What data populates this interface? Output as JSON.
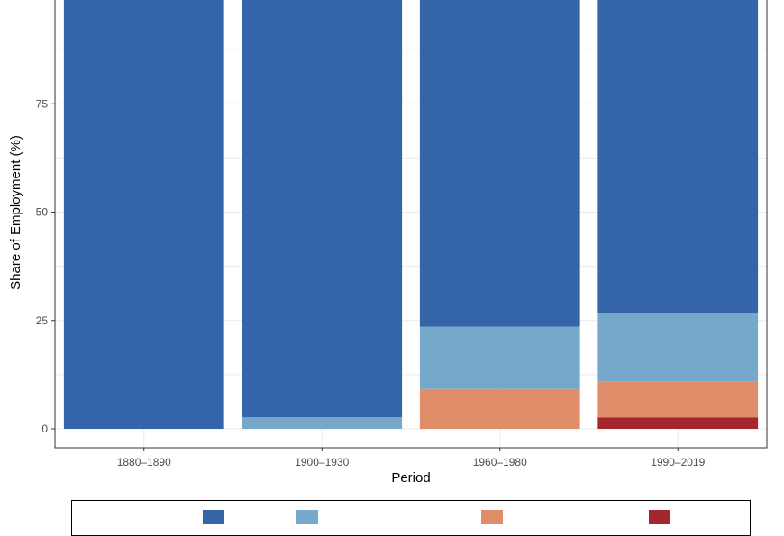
{
  "chart_data": {
    "type": "bar",
    "stacked": true,
    "xlabel": "Period",
    "ylabel": "Share of Employment (%)",
    "categories": [
      "1880–1890",
      "1900–1930",
      "1960–1980",
      "1990–2019"
    ],
    "ylim": [
      0,
      100
    ],
    "y_ticks": [
      0,
      25,
      50,
      75
    ],
    "grid": true,
    "legend_position": "bottom",
    "series": [
      {
        "color": "#a6262d",
        "values": [
          0,
          0,
          0,
          2.6
        ]
      },
      {
        "color": "#e08e6a",
        "values": [
          0,
          0,
          9.2,
          8.4
        ]
      },
      {
        "color": "#76a8cc",
        "values": [
          0,
          2.7,
          14.4,
          15.6
        ]
      },
      {
        "color": "#3465a8",
        "values": [
          100,
          97.3,
          76.4,
          73.4
        ]
      }
    ]
  }
}
